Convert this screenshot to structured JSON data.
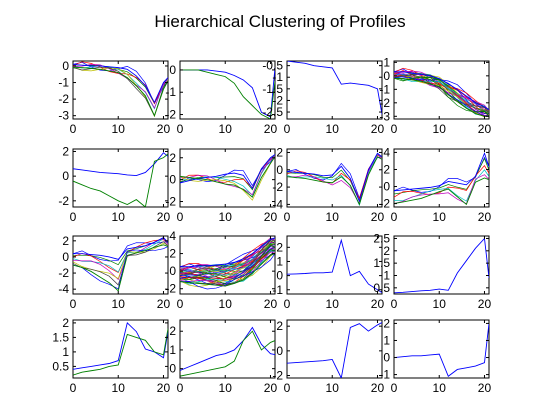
{
  "title": "Hierarchical Clustering of Profiles",
  "chart_data": {
    "type": "line",
    "title": "Hierarchical Clustering of Profiles",
    "layout": {
      "rows": 4,
      "cols": 4
    },
    "x": [
      0,
      2,
      4,
      6,
      8,
      10,
      12,
      14,
      16,
      18,
      20,
      21
    ],
    "xlim": [
      0,
      21
    ],
    "xticks": [
      0,
      10,
      20
    ],
    "series_colors": [
      "#0000ff",
      "#008000",
      "#ff0000",
      "#00bfbf",
      "#bf00bf",
      "#bfbf00",
      "#404040"
    ],
    "panels": [
      {
        "yticks": [
          0,
          -1,
          -2,
          -3
        ],
        "ylim": [
          -3.2,
          0.3
        ],
        "band": 7,
        "series": [
          {
            "values": [
              0.1,
              0.05,
              0,
              0,
              -0.05,
              -0.1,
              -0.2,
              -0.6,
              -1.2,
              -2.2,
              -1.0,
              -0.7
            ]
          },
          {
            "values": [
              -0.1,
              -0.1,
              -0.15,
              -0.2,
              -0.3,
              -0.4,
              -0.7,
              -1.2,
              -1.8,
              -3.0,
              -1.4,
              -0.9
            ]
          }
        ]
      },
      {
        "yticks": [
          0,
          -1,
          -2
        ],
        "ylim": [
          -2.2,
          0.4
        ],
        "series": [
          {
            "values": [
              0,
              0,
              0,
              0,
              -0.05,
              -0.1,
              -0.25,
              -0.45,
              -0.8,
              -1.9,
              -2.1,
              0.1
            ]
          },
          {
            "values": [
              0,
              0,
              0,
              -0.1,
              -0.2,
              -0.3,
              -0.6,
              -1.2,
              -1.6,
              -2.0,
              -2.2,
              -0.5
            ]
          }
        ]
      },
      {
        "yticks": [
          -0.5,
          -1,
          -1.5,
          -2,
          -2.5
        ],
        "ylim": [
          -2.8,
          -0.3
        ],
        "series": [
          {
            "values": [
              -0.3,
              -0.35,
              -0.4,
              -0.5,
              -0.55,
              -0.6,
              -1.3,
              -1.25,
              -1.3,
              -1.35,
              -1.5,
              -2.6
            ]
          }
        ]
      },
      {
        "yticks": [
          1,
          0,
          -1,
          -2,
          -3
        ],
        "ylim": [
          -3.2,
          1.1
        ],
        "band": 24,
        "series": [
          {
            "values": [
              0.3,
              0.3,
              0.2,
              0.1,
              0,
              -0.2,
              -0.6,
              -1.0,
              -1.5,
              -2.0,
              -2.3,
              -2.5
            ]
          },
          {
            "values": [
              -0.2,
              -0.2,
              -0.3,
              -0.4,
              -0.6,
              -0.8,
              -1.4,
              -1.9,
              -2.4,
              -2.8,
              -3.0,
              -3.0
            ]
          }
        ]
      },
      {
        "yticks": [
          2,
          0,
          -2
        ],
        "ylim": [
          -2.5,
          2.2
        ],
        "series": [
          {
            "values": [
              0.6,
              0.5,
              0.4,
              0.3,
              0.25,
              0.2,
              0.1,
              0.05,
              0.3,
              1.0,
              1.9,
              1.6
            ]
          },
          {
            "values": [
              -0.4,
              -0.7,
              -1.0,
              -1.2,
              -1.6,
              -2.0,
              -2.3,
              -1.9,
              -2.5,
              1.2,
              1.5,
              1.8
            ]
          }
        ]
      },
      {
        "yticks": [
          2,
          0,
          -2
        ],
        "ylim": [
          -2.5,
          2.8
        ],
        "band": 6,
        "series": [
          {
            "values": [
              -0.3,
              -0.1,
              0.1,
              0.2,
              0.3,
              0.5,
              0.6,
              0.4,
              -0.8,
              1.0,
              2.0,
              2.3
            ]
          },
          {
            "values": [
              0.3,
              0.2,
              0.1,
              0,
              -0.2,
              -0.4,
              -0.5,
              -0.9,
              -1.6,
              0.2,
              1.5,
              2.1
            ]
          }
        ]
      },
      {
        "yticks": [
          2,
          0,
          -2,
          -4
        ],
        "ylim": [
          -4.3,
          2.4
        ],
        "band": 5,
        "series": [
          {
            "values": [
              -0.2,
              -0.3,
              -0.4,
              -0.5,
              -0.7,
              -0.6,
              0.4,
              -1.0,
              -3.6,
              0.0,
              1.9,
              1.5
            ]
          },
          {
            "values": [
              -0.8,
              -0.9,
              -1.0,
              -1.2,
              -1.4,
              -1.5,
              -0.8,
              -1.8,
              -4.0,
              -0.6,
              1.5,
              1.2
            ]
          }
        ]
      },
      {
        "yticks": [
          4,
          2,
          0,
          -2
        ],
        "ylim": [
          -2.4,
          4.4
        ],
        "band": 5,
        "series": [
          {
            "values": [
              -0.5,
              -0.4,
              -0.3,
              -0.2,
              -0.1,
              0.1,
              0.6,
              0.4,
              0.2,
              1.2,
              3.9,
              2.3
            ]
          },
          {
            "values": [
              -2.0,
              -1.8,
              -1.6,
              -1.4,
              -1.0,
              -0.6,
              -0.3,
              -1.2,
              -2.1,
              0.5,
              1.0,
              0.8
            ]
          }
        ]
      },
      {
        "yticks": [
          2,
          0,
          -2,
          -4
        ],
        "ylim": [
          -4.6,
          2.6
        ],
        "band": 8,
        "series": [
          {
            "values": [
              0.4,
              0.4,
              0.3,
              0.2,
              0.0,
              -0.3,
              1.0,
              1.2,
              1.4,
              1.8,
              2.4,
              1.8
            ]
          },
          {
            "values": [
              -1.0,
              -1.3,
              -1.8,
              -2.5,
              -3.2,
              -4.2,
              0.2,
              0.5,
              0.8,
              1.2,
              1.5,
              1.3
            ]
          }
        ]
      },
      {
        "yticks": [
          4,
          2,
          0,
          -2
        ],
        "ylim": [
          -2.6,
          4.0
        ],
        "band": 36,
        "series": [
          {
            "values": [
              0.5,
              0.5,
              0.6,
              0.6,
              0.7,
              0.8,
              1.0,
              1.4,
              2.0,
              2.8,
              3.6,
              3.8
            ]
          },
          {
            "values": [
              -1.2,
              -1.3,
              -1.4,
              -1.5,
              -1.6,
              -1.7,
              -1.4,
              -1.0,
              -0.2,
              0.8,
              1.8,
              2.0
            ]
          }
        ]
      },
      {
        "yticks": [
          2,
          1,
          0,
          -1
        ],
        "ylim": [
          -1.3,
          2.8
        ],
        "series": [
          {
            "values": [
              0.1,
              0.12,
              0.15,
              0.2,
              0.2,
              0.25,
              2.5,
              0.0,
              0.3,
              -0.6,
              -1.0,
              -1.2
            ]
          }
        ]
      },
      {
        "yticks": [
          2.5,
          2,
          1.5,
          1,
          0.5
        ],
        "ylim": [
          0.25,
          2.6
        ],
        "series": [
          {
            "values": [
              0.3,
              0.32,
              0.35,
              0.38,
              0.4,
              0.45,
              0.4,
              1.1,
              1.6,
              2.1,
              2.5,
              0.9
            ]
          }
        ]
      },
      {
        "yticks": [
          2,
          1.5,
          1,
          0.5
        ],
        "ylim": [
          0.1,
          2.1
        ],
        "series": [
          {
            "values": [
              0.4,
              0.45,
              0.5,
              0.55,
              0.6,
              0.7,
              2.0,
              1.7,
              1.1,
              1.0,
              0.8,
              1.7
            ]
          },
          {
            "values": [
              0.2,
              0.3,
              0.35,
              0.4,
              0.5,
              0.55,
              1.6,
              1.5,
              1.4,
              1.0,
              0.9,
              1.8
            ]
          }
        ]
      },
      {
        "yticks": [
          2,
          1,
          0
        ],
        "ylim": [
          -0.5,
          2.6
        ],
        "series": [
          {
            "values": [
              -0.1,
              0.1,
              0.3,
              0.5,
              0.7,
              0.8,
              1.0,
              1.5,
              2.2,
              1.3,
              0.8,
              0.75
            ]
          },
          {
            "values": [
              -0.4,
              -0.3,
              -0.2,
              -0.1,
              0.0,
              0.1,
              0.4,
              1.5,
              2.0,
              1.0,
              1.4,
              1.5
            ]
          }
        ]
      },
      {
        "yticks": [
          2,
          0,
          -2
        ],
        "ylim": [
          -2.2,
          2.5
        ],
        "series": [
          {
            "values": [
              -1.0,
              -0.95,
              -0.9,
              -0.85,
              -0.8,
              -0.7,
              -2.2,
              1.9,
              2.2,
              1.6,
              2.1,
              2.3
            ]
          }
        ]
      },
      {
        "yticks": [
          2,
          1,
          0,
          -1
        ],
        "ylim": [
          -1.2,
          2.2
        ],
        "series": [
          {
            "values": [
              0.0,
              0.05,
              0.1,
              0.1,
              0.15,
              0.2,
              -1.1,
              -0.7,
              -0.6,
              -0.5,
              -0.3,
              2.0
            ]
          }
        ]
      }
    ]
  }
}
